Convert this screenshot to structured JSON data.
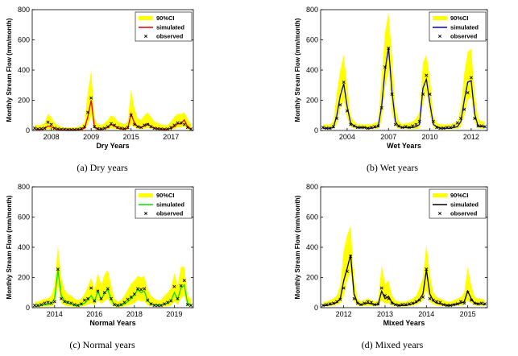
{
  "figure": {
    "captions": [
      "(a)  Dry  years",
      "(b)  Wet  years",
      "(c)  Normal  years",
      "(d)  Mixed  years"
    ]
  },
  "legend": {
    "ci_label": "90%CI",
    "sim_label": "simulated",
    "obs_label": "observed"
  },
  "colors": {
    "ci": "#ffff00",
    "obs": "#000000",
    "sim_a": "#e00000",
    "sim_b": "#0000cc",
    "sim_c": "#00e000",
    "sim_d": "#000000"
  },
  "chart_data": [
    {
      "type": "line",
      "title": "",
      "xlabel": "Dry Years",
      "ylabel": "Monthly Stream Flow (mm/month)",
      "ylim": [
        0,
        800
      ],
      "yticks": [
        0,
        200,
        400,
        600,
        800
      ],
      "xticks": [
        "2008",
        "2009",
        "2015",
        "2017"
      ],
      "xtick_month_index": [
        5,
        17,
        29,
        41
      ],
      "n_months": 48,
      "legend_position": "top-right",
      "grid": false,
      "series": [
        {
          "name": "90%CI",
          "kind": "band",
          "lower": [
            5,
            3,
            3,
            5,
            8,
            6,
            4,
            3,
            2,
            2,
            2,
            2,
            2,
            3,
            3,
            6,
            40,
            95,
            8,
            4,
            4,
            6,
            8,
            15,
            12,
            6,
            5,
            4,
            6,
            40,
            20,
            10,
            8,
            12,
            18,
            10,
            6,
            5,
            4,
            3,
            3,
            6,
            10,
            20,
            20,
            25,
            8,
            4
          ],
          "upper": [
            40,
            35,
            35,
            50,
            110,
            90,
            50,
            35,
            25,
            20,
            20,
            20,
            20,
            25,
            30,
            60,
            250,
            400,
            80,
            40,
            35,
            50,
            70,
            100,
            90,
            60,
            50,
            40,
            60,
            270,
            150,
            80,
            70,
            100,
            120,
            90,
            60,
            50,
            40,
            35,
            35,
            60,
            90,
            110,
            110,
            120,
            80,
            40
          ]
        },
        {
          "name": "simulated",
          "kind": "line",
          "values": [
            10,
            8,
            8,
            12,
            30,
            25,
            12,
            8,
            5,
            5,
            5,
            5,
            5,
            6,
            8,
            15,
            90,
            200,
            20,
            10,
            8,
            12,
            20,
            40,
            30,
            15,
            12,
            10,
            15,
            110,
            50,
            25,
            20,
            30,
            45,
            25,
            15,
            12,
            10,
            8,
            8,
            15,
            25,
            45,
            45,
            70,
            25,
            10
          ]
        },
        {
          "name": "observed",
          "kind": "markers",
          "values": [
            15,
            10,
            12,
            15,
            55,
            40,
            15,
            10,
            8,
            8,
            6,
            6,
            6,
            8,
            12,
            25,
            120,
            215,
            25,
            12,
            10,
            15,
            25,
            45,
            35,
            20,
            15,
            12,
            20,
            100,
            40,
            25,
            20,
            35,
            40,
            25,
            15,
            12,
            10,
            8,
            10,
            20,
            35,
            50,
            50,
            40,
            20,
            10
          ]
        }
      ]
    },
    {
      "type": "line",
      "title": "",
      "xlabel": "Wet Years",
      "ylabel": "Monthly Stream Flow (mm/month)",
      "ylim": [
        0,
        800
      ],
      "yticks": [
        0,
        200,
        400,
        600,
        800
      ],
      "xticks": [
        "2004",
        "2007",
        "2010",
        "2012"
      ],
      "xtick_month_index": [
        7,
        19,
        31,
        43
      ],
      "n_months": 48,
      "legend_position": "top-right",
      "grid": false,
      "series": [
        {
          "name": "90%CI",
          "kind": "band",
          "lower": [
            8,
            8,
            8,
            10,
            40,
            150,
            200,
            80,
            25,
            15,
            10,
            10,
            10,
            8,
            8,
            10,
            10,
            60,
            280,
            400,
            120,
            25,
            12,
            10,
            10,
            8,
            8,
            10,
            15,
            180,
            260,
            100,
            20,
            12,
            8,
            8,
            8,
            8,
            10,
            10,
            25,
            100,
            200,
            220,
            50,
            15,
            12,
            12
          ],
          "upper": [
            40,
            40,
            40,
            60,
            250,
            400,
            500,
            300,
            100,
            60,
            40,
            40,
            40,
            40,
            40,
            50,
            60,
            350,
            650,
            780,
            500,
            150,
            60,
            40,
            50,
            50,
            60,
            80,
            120,
            450,
            500,
            350,
            100,
            50,
            40,
            40,
            40,
            40,
            50,
            60,
            150,
            380,
            520,
            540,
            250,
            80,
            60,
            60
          ]
        },
        {
          "name": "simulated",
          "kind": "line",
          "values": [
            15,
            15,
            15,
            20,
            100,
            230,
            310,
            160,
            50,
            30,
            20,
            20,
            20,
            15,
            15,
            20,
            25,
            160,
            400,
            550,
            260,
            60,
            25,
            20,
            20,
            20,
            20,
            25,
            40,
            280,
            340,
            180,
            40,
            25,
            15,
            15,
            15,
            15,
            20,
            25,
            60,
            200,
            320,
            330,
            110,
            30,
            25,
            25
          ]
        },
        {
          "name": "observed",
          "kind": "markers",
          "values": [
            20,
            15,
            15,
            25,
            80,
            170,
            320,
            130,
            40,
            30,
            20,
            20,
            20,
            15,
            20,
            25,
            30,
            150,
            420,
            545,
            240,
            40,
            30,
            20,
            25,
            20,
            30,
            40,
            60,
            240,
            365,
            240,
            60,
            20,
            15,
            15,
            20,
            20,
            30,
            50,
            80,
            140,
            250,
            350,
            80,
            30,
            30,
            25
          ]
        }
      ]
    },
    {
      "type": "line",
      "title": "",
      "xlabel": "Normal Years",
      "ylabel": "Monthly Stream Flow (mm/month)",
      "ylim": [
        0,
        800
      ],
      "yticks": [
        0,
        200,
        400,
        600,
        800
      ],
      "xticks": [
        "2014",
        "2016",
        "2018",
        "2019"
      ],
      "xtick_month_index": [
        6,
        18,
        30,
        42
      ],
      "n_months": 48,
      "legend_position": "top-right",
      "grid": false,
      "series": [
        {
          "name": "90%CI",
          "kind": "band",
          "lower": [
            5,
            5,
            5,
            8,
            8,
            10,
            20,
            150,
            30,
            15,
            10,
            8,
            5,
            5,
            8,
            10,
            20,
            30,
            15,
            50,
            25,
            40,
            60,
            20,
            8,
            5,
            5,
            10,
            15,
            20,
            30,
            50,
            40,
            45,
            15,
            10,
            8,
            5,
            5,
            8,
            10,
            15,
            40,
            20,
            60,
            80,
            10,
            8
          ],
          "upper": [
            40,
            40,
            50,
            60,
            60,
            80,
            150,
            410,
            200,
            120,
            90,
            80,
            60,
            50,
            60,
            90,
            140,
            200,
            120,
            230,
            150,
            220,
            250,
            150,
            60,
            40,
            50,
            80,
            120,
            160,
            180,
            210,
            200,
            210,
            120,
            80,
            60,
            50,
            50,
            80,
            100,
            130,
            230,
            150,
            270,
            270,
            80,
            60
          ]
        },
        {
          "name": "simulated",
          "kind": "line",
          "values": [
            10,
            10,
            15,
            20,
            20,
            30,
            60,
            250,
            80,
            45,
            30,
            25,
            15,
            15,
            20,
            30,
            50,
            80,
            40,
            110,
            55,
            95,
            120,
            55,
            20,
            15,
            15,
            25,
            40,
            60,
            85,
            120,
            100,
            110,
            45,
            25,
            20,
            15,
            15,
            20,
            30,
            45,
            100,
            55,
            130,
            150,
            25,
            20
          ]
        },
        {
          "name": "observed",
          "kind": "markers",
          "values": [
            15,
            15,
            20,
            30,
            35,
            30,
            40,
            255,
            60,
            40,
            35,
            30,
            20,
            15,
            25,
            50,
            60,
            130,
            45,
            110,
            60,
            100,
            125,
            60,
            20,
            15,
            20,
            35,
            55,
            70,
            90,
            125,
            120,
            125,
            50,
            25,
            15,
            15,
            15,
            25,
            35,
            45,
            140,
            60,
            145,
            180,
            20,
            15
          ]
        }
      ]
    },
    {
      "type": "line",
      "title": "",
      "xlabel": "Mixed Years",
      "ylabel": "Monthly Stream Flow (mm/month)",
      "ylim": [
        0,
        800
      ],
      "yticks": [
        0,
        200,
        400,
        600,
        800
      ],
      "xticks": [
        "2012",
        "2013",
        "2014",
        "2015"
      ],
      "xtick_month_index": [
        6,
        18,
        30,
        42
      ],
      "n_months": 48,
      "legend_position": "top-right",
      "grid": false,
      "series": [
        {
          "name": "90%CI",
          "kind": "band",
          "lower": [
            8,
            8,
            10,
            15,
            20,
            30,
            80,
            180,
            240,
            40,
            15,
            10,
            12,
            15,
            12,
            10,
            10,
            50,
            25,
            30,
            15,
            10,
            8,
            8,
            8,
            10,
            15,
            20,
            30,
            50,
            120,
            40,
            20,
            15,
            12,
            10,
            8,
            8,
            10,
            15,
            15,
            20,
            50,
            30,
            15,
            12,
            12,
            10
          ],
          "upper": [
            40,
            40,
            50,
            60,
            80,
            150,
            380,
            480,
            540,
            200,
            60,
            40,
            50,
            60,
            50,
            40,
            50,
            280,
            160,
            180,
            80,
            50,
            40,
            40,
            40,
            50,
            60,
            80,
            130,
            200,
            420,
            220,
            100,
            70,
            60,
            50,
            40,
            40,
            50,
            60,
            70,
            100,
            270,
            150,
            70,
            60,
            60,
            50
          ]
        },
        {
          "name": "simulated",
          "kind": "line",
          "values": [
            15,
            15,
            20,
            25,
            35,
            60,
            180,
            260,
            350,
            90,
            30,
            20,
            25,
            30,
            25,
            20,
            20,
            110,
            60,
            75,
            35,
            20,
            15,
            15,
            15,
            20,
            25,
            35,
            55,
            90,
            250,
            90,
            45,
            30,
            25,
            20,
            15,
            15,
            20,
            25,
            30,
            40,
            110,
            60,
            30,
            25,
            25,
            20
          ]
        },
        {
          "name": "observed",
          "kind": "markers",
          "values": [
            15,
            20,
            25,
            30,
            40,
            55,
            130,
            240,
            340,
            60,
            30,
            20,
            30,
            40,
            35,
            20,
            25,
            130,
            80,
            60,
            30,
            20,
            15,
            20,
            20,
            25,
            30,
            40,
            50,
            70,
            255,
            60,
            50,
            40,
            35,
            20,
            15,
            15,
            20,
            25,
            40,
            30,
            100,
            50,
            30,
            25,
            30,
            25
          ]
        }
      ]
    }
  ]
}
